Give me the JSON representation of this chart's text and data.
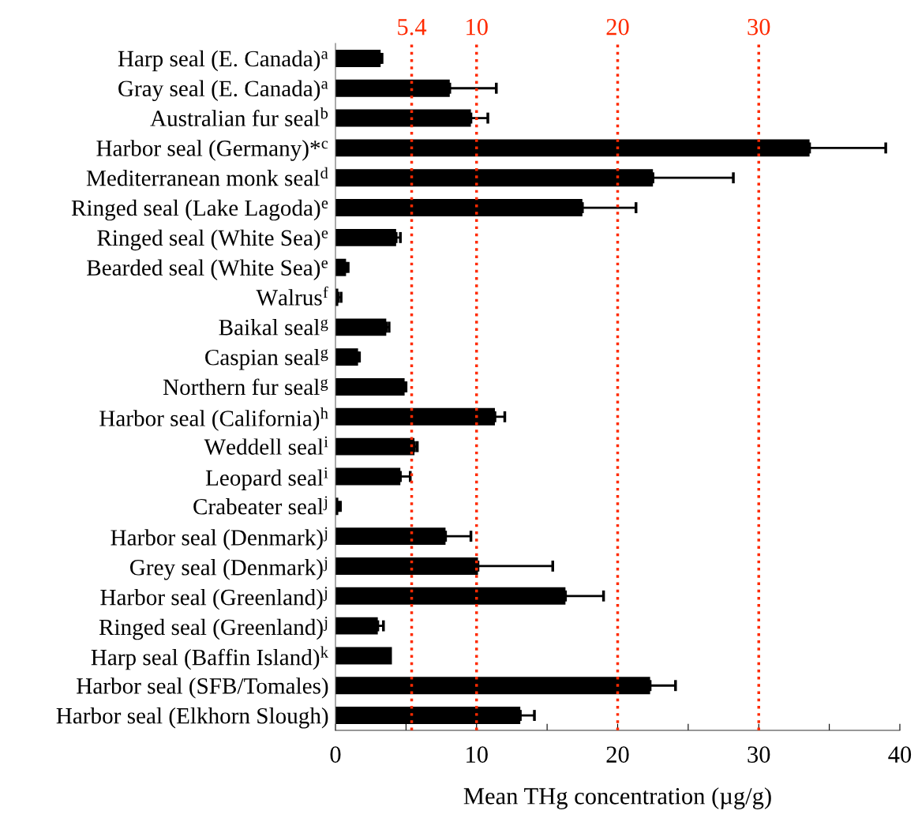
{
  "chart_data": {
    "type": "bar",
    "orientation": "horizontal",
    "xlabel": "Mean THg concentration (µg/g)",
    "categories": [
      "Harp seal (E. Canada)$^{a}$",
      "Gray seal (E. Canada)$^{a}$",
      "Australian fur seal$^{b}$",
      "Harbor seal (Germany)*$^{c}$",
      "Mediterranean monk seal$^{d}$",
      "Ringed seal (Lake Lagoda)$^{e}$",
      "Ringed seal (White Sea)$^{e}$",
      "Bearded seal (White Sea)$^{e}$",
      "Walrus$^{f}$",
      "Baikal seal$^{g}$",
      "Caspian seal$^{g}$",
      "Northern fur seal$^{g}$",
      "Harbor seal (California)$^{h}$",
      "Weddell seal$^{i}$",
      "Leopard seal$^{i}$",
      "Crabeater seal$^{j}$",
      "Harbor seal (Denmark)$^{j}$",
      "Grey seal (Denmark)$^{j}$",
      "Harbor seal (Greenland)$^{j}$",
      "Ringed seal (Greenland)$^{j}$",
      "Harp seal (Baffin Island)$^{k}$",
      "Harbor seal (SFB/Tomales)",
      "Harbor seal (Elkhorn Slough)"
    ],
    "series": [
      {
        "color": "#000000",
        "values": [
          3.2,
          8.1,
          9.6,
          33.6,
          22.5,
          17.5,
          4.3,
          0.75,
          0.2,
          3.6,
          1.6,
          4.9,
          11.3,
          5.6,
          4.6,
          0.2,
          7.8,
          10.1,
          16.3,
          3.0,
          4.0,
          22.3,
          13.1
        ],
        "errors": [
          0.1,
          3.3,
          1.2,
          5.4,
          5.7,
          3.8,
          0.3,
          0.15,
          0.2,
          0.2,
          0.1,
          0.1,
          0.7,
          0.2,
          0.7,
          0.15,
          1.8,
          5.3,
          2.7,
          0.4,
          null,
          1.8,
          1.0
        ]
      }
    ],
    "xlim": [
      0,
      40
    ],
    "xticks": [
      0,
      {
        "value": 5,
        "label": null
      },
      10,
      {
        "value": 15,
        "label": null
      },
      20,
      {
        "value": 25,
        "label": null
      },
      30,
      {
        "value": 35,
        "label": null
      },
      40
    ],
    "ref_lines": [
      {
        "axis": "x",
        "value": 5.4,
        "label": "5.4",
        "color": "#ff2a00",
        "line_style": "dotted"
      },
      {
        "axis": "x",
        "value": 10,
        "label": "10",
        "color": "#ff2a00",
        "line_style": "dotted"
      },
      {
        "axis": "x",
        "value": 20,
        "label": "20",
        "color": "#ff2a00",
        "line_style": "dotted"
      },
      {
        "axis": "x",
        "value": 30,
        "label": "30",
        "color": "#ff2a00",
        "line_style": "dotted"
      }
    ],
    "grid": false,
    "legend": false
  }
}
